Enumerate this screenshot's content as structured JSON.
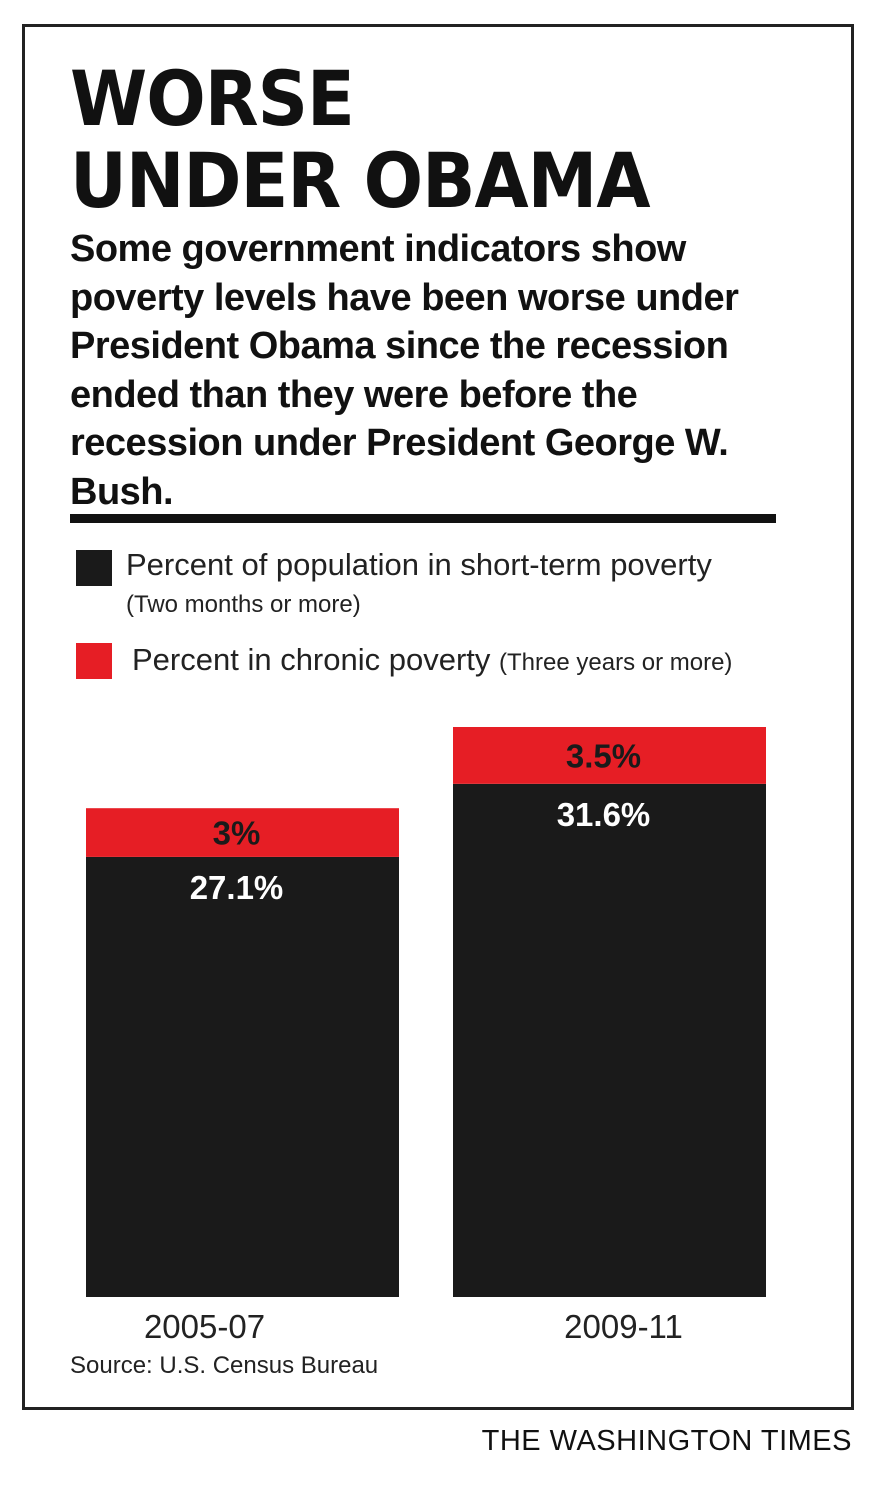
{
  "title": "WORSE\nUNDER OBAMA",
  "subtitle": "Some government indicators show poverty levels have been worse under President Obama since the recession ended than they were before the recession under President George W. Bush.",
  "legend": {
    "short_term_label": "Percent of population in short-term poverty",
    "short_term_note": "(Two months or more)",
    "chronic_label": "Percent in chronic poverty",
    "chronic_note": "(Three years or more)"
  },
  "source": "Source: U.S. Census Bureau",
  "publisher": "THE WASHINGTON TIMES",
  "colors": {
    "short_term": "#1a1a1a",
    "chronic": "#e61e25",
    "short_term_label_text": "#ffffff",
    "chronic_label_text": "#1a1a1a"
  },
  "chart_data": {
    "type": "bar",
    "stacked": true,
    "categories": [
      "2005-07",
      "2009-11"
    ],
    "series": [
      {
        "name": "Percent of population in short-term poverty",
        "values": [
          27.1,
          31.6
        ],
        "labels": [
          "27.1%",
          "31.6%"
        ]
      },
      {
        "name": "Percent in chronic poverty",
        "values": [
          3,
          3.5
        ],
        "labels": [
          "3%",
          "3.5%"
        ]
      }
    ],
    "title": "",
    "xlabel": "",
    "ylabel": "",
    "ylim": [
      0,
      35.1
    ],
    "grid": false,
    "legend_position": "top"
  }
}
